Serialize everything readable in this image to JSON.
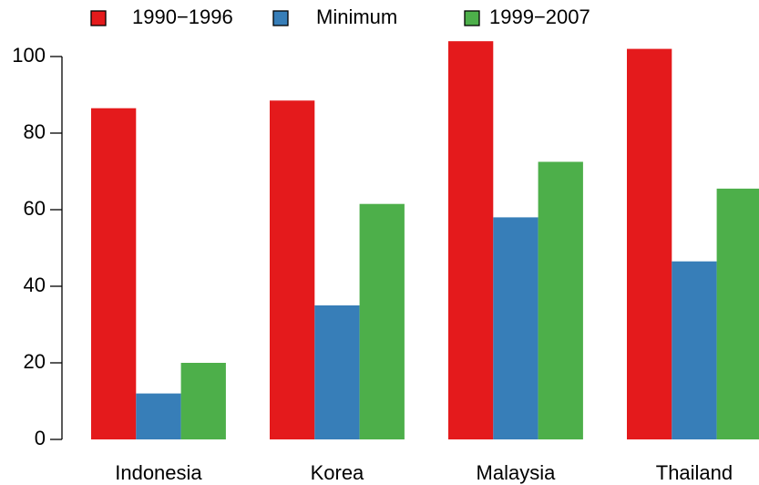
{
  "chart_data": {
    "type": "bar",
    "categories": [
      "Indonesia",
      "Korea",
      "Malaysia",
      "Thailand"
    ],
    "series": [
      {
        "name": "1990−1996",
        "color": "#e41a1c",
        "values": [
          86.5,
          88.5,
          104,
          102
        ]
      },
      {
        "name": "Minimum",
        "color": "#377eb8",
        "values": [
          12,
          35,
          58,
          46.5
        ]
      },
      {
        "name": "1999−2007",
        "color": "#4daf4a",
        "values": [
          20,
          61.5,
          72.5,
          65.5
        ]
      }
    ],
    "ylim": [
      0,
      110
    ],
    "yticks": [
      0,
      20,
      40,
      60,
      80,
      100
    ],
    "grid": false,
    "legend": "top"
  }
}
